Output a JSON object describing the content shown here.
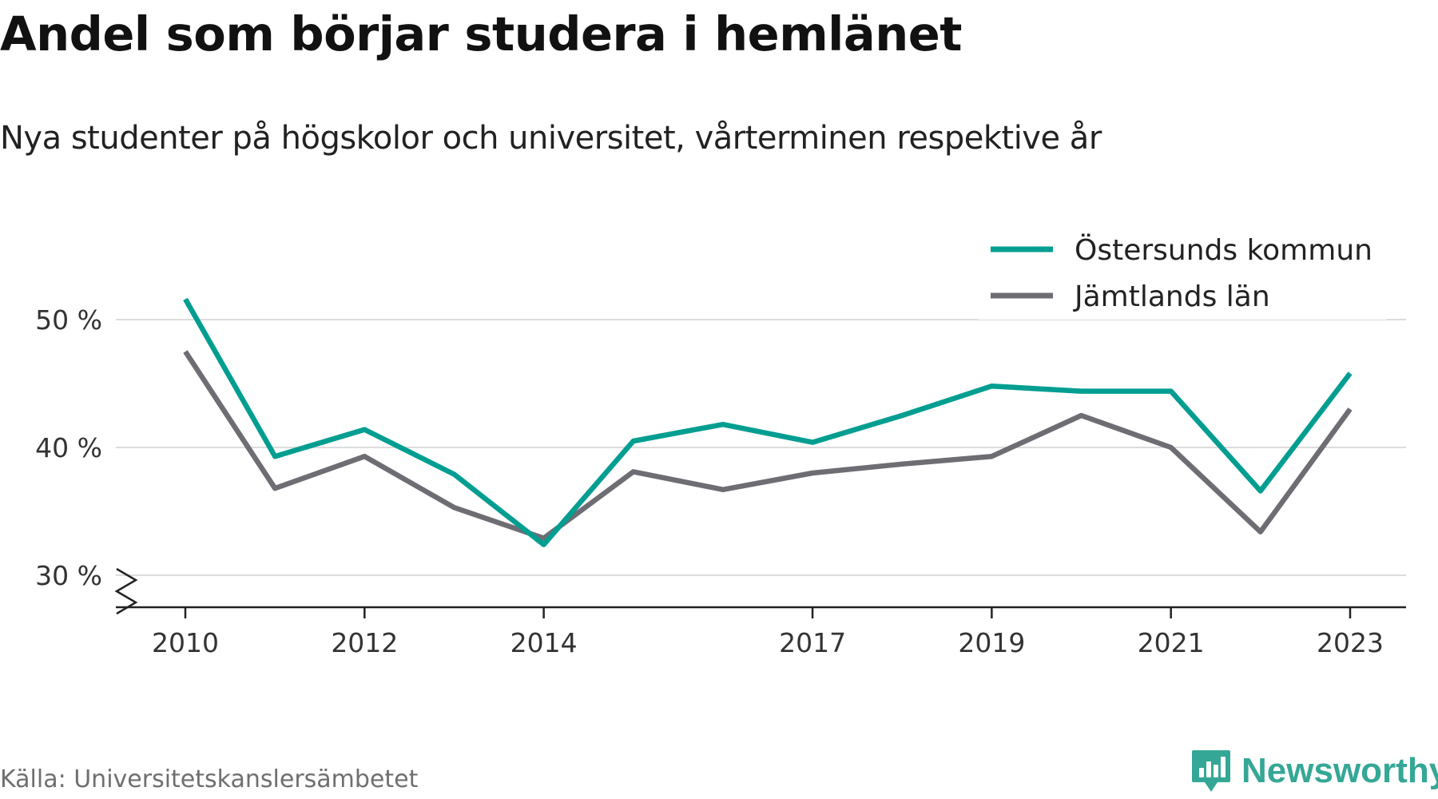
{
  "title": "Andel som börjar studera i hemlänet",
  "subtitle": "Nya studenter på högskolor och universitet, vårterminen respektive år",
  "source": "Källa: Universitetskanslersämbetet",
  "brand": {
    "name": "Newsworthy",
    "icon": "bar-chart-logo-icon",
    "color": "#35a796"
  },
  "chart_data": {
    "type": "line",
    "x": [
      2010,
      2011,
      2012,
      2013,
      2014,
      2015,
      2016,
      2017,
      2018,
      2019,
      2020,
      2021,
      2022,
      2023
    ],
    "xticks": [
      "2010",
      "2012",
      "2014",
      "2017",
      "2019",
      "2021",
      "2023"
    ],
    "yticks": [
      "30 %",
      "40 %",
      "50 %"
    ],
    "ylim": [
      30,
      52
    ],
    "grid": true,
    "axis_break": true,
    "legend_position": "top-right",
    "series": [
      {
        "name": "Östersunds kommun",
        "color": "#009e91",
        "values": [
          51.6,
          39.3,
          41.4,
          37.9,
          32.4,
          40.5,
          41.8,
          40.4,
          42.5,
          44.8,
          44.4,
          44.4,
          36.6,
          45.8
        ]
      },
      {
        "name": "Jämtlands län",
        "color": "#6e6d73",
        "values": [
          47.5,
          36.8,
          39.3,
          35.3,
          32.9,
          38.1,
          36.7,
          38.0,
          38.7,
          39.3,
          42.5,
          40.0,
          33.4,
          43.0
        ]
      }
    ]
  }
}
